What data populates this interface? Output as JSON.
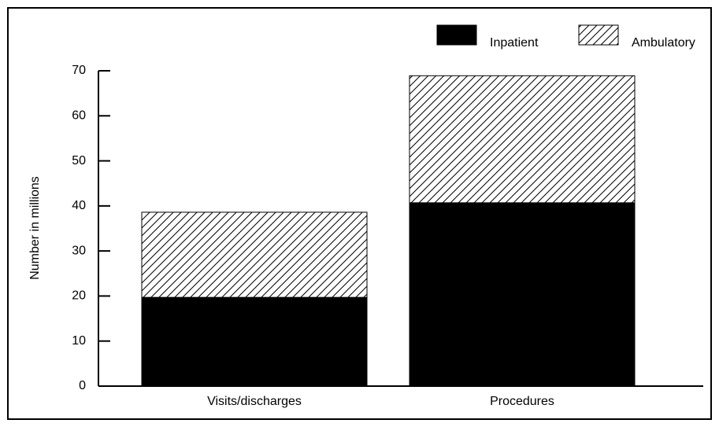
{
  "chart_data": {
    "type": "stacked_bar",
    "y_label": "Number in millions",
    "categories": [
      "Visits/discharges",
      "Procedures"
    ],
    "series": [
      {
        "name": "Inpatient",
        "color": "#000000",
        "fill": "solid",
        "values": [
          19.7,
          40.7
        ]
      },
      {
        "name": "Ambulatory",
        "color": "#000000",
        "fill": "hatch",
        "values": [
          18.9,
          28.2
        ]
      }
    ],
    "ylim": [
      0,
      70
    ],
    "yticks": [
      0,
      10,
      20,
      30,
      40,
      50,
      60,
      70
    ],
    "legend": "top-right"
  }
}
